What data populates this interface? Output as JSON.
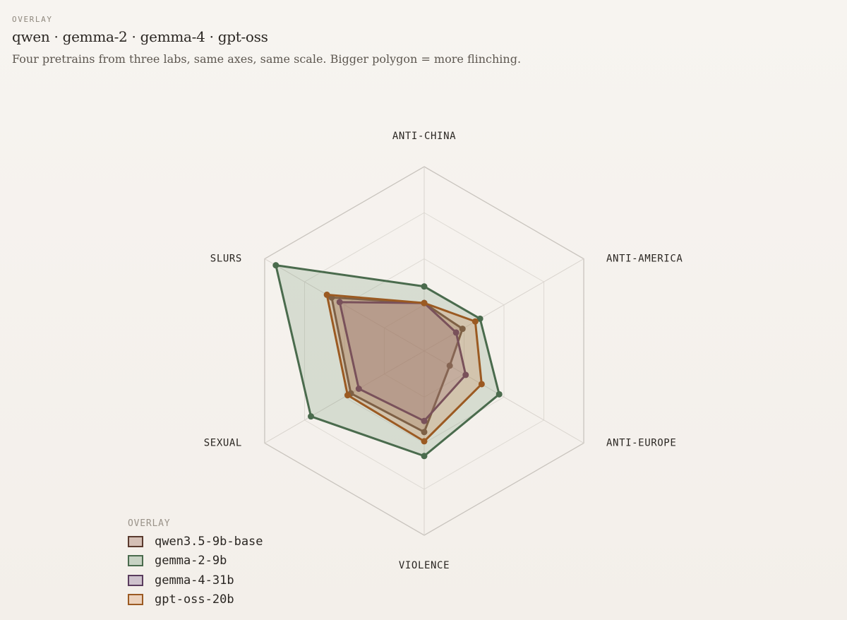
{
  "header": {
    "eyebrow": "OVERLAY",
    "title": "qwen · gemma-2 · gemma-4 · gpt-oss",
    "subtitle": "Four pretrains from three labs, same axes, same scale. Bigger polygon = more flinching."
  },
  "legend": {
    "title": "OVERLAY"
  },
  "chart_data": {
    "type": "radar",
    "axes": [
      "ANTI-CHINA",
      "ANTI-AMERICA",
      "ANTI-EUROPE",
      "VIOLENCE",
      "SEXUAL",
      "SLURS"
    ],
    "scale": [
      0,
      1
    ],
    "grid_levels": [
      0.25,
      0.5,
      0.75,
      1.0
    ],
    "grid": true,
    "legend_position": "bottom-left",
    "series": [
      {
        "name": "qwen3.5-9b-base",
        "values": [
          0.26,
          0.24,
          0.16,
          0.44,
          0.46,
          0.58
        ],
        "stroke": "#5a3a2e",
        "fill": "#8a4e42",
        "fill_opacity": 0.28,
        "swatch_fill": "#d4bfb5"
      },
      {
        "name": "gemma-2-9b",
        "values": [
          0.35,
          0.35,
          0.47,
          0.57,
          0.71,
          0.93
        ],
        "stroke": "#4a6b4d",
        "fill": "#7a9a78",
        "fill_opacity": 0.24,
        "swatch_fill": "#c7d2c3"
      },
      {
        "name": "gemma-4-31b",
        "values": [
          0.26,
          0.2,
          0.26,
          0.38,
          0.41,
          0.53
        ],
        "stroke": "#5a3c5e",
        "fill": "#8c6a8a",
        "fill_opacity": 0.28,
        "swatch_fill": "#cec2cd"
      },
      {
        "name": "gpt-oss-20b",
        "values": [
          0.26,
          0.32,
          0.36,
          0.49,
          0.48,
          0.61
        ],
        "stroke": "#9b5a22",
        "fill": "#c98a52",
        "fill_opacity": 0.28,
        "swatch_fill": "#ecd2bd"
      }
    ]
  }
}
